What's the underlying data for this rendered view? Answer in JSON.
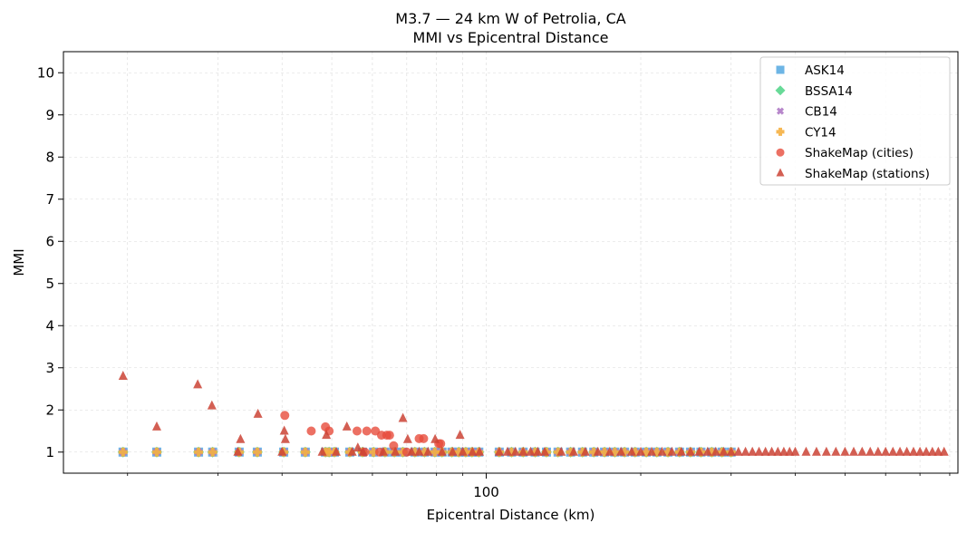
{
  "chart_data": {
    "type": "scatter",
    "title": "M3.7 — 24 km W of Petrolia, CA",
    "subtitle": "MMI vs Epicentral Distance",
    "xlabel": "Epicentral Distance (km)",
    "ylabel": "MMI",
    "x_scale": "log",
    "xlim": [
      15,
      830
    ],
    "ylim": [
      0.5,
      10.5
    ],
    "x_ticks": [
      100
    ],
    "x_tick_labels": [
      "100"
    ],
    "y_ticks": [
      1,
      2,
      3,
      4,
      5,
      6,
      7,
      8,
      9,
      10
    ],
    "y_tick_labels": [
      "1",
      "2",
      "3",
      "4",
      "5",
      "6",
      "7",
      "8",
      "9",
      "10"
    ],
    "grid": true,
    "legend_position": "top-right",
    "gmpe_x": [
      19.6,
      22.8,
      27.5,
      29.3,
      33.0,
      35.8,
      40.3,
      44.4,
      48.6,
      49.4,
      50.6,
      54.2,
      57.4,
      60.3,
      63.5,
      66.2,
      68.8,
      72.6,
      75.8,
      79.4,
      82.0,
      85.7,
      88.4,
      91.2,
      93.8,
      96.7,
      106.0,
      112.0,
      118.0,
      124.5,
      131.0,
      138.0,
      146.0,
      154.0,
      162.0,
      170.0,
      178.0,
      186.0,
      195.0,
      205.0,
      215.0,
      226.0,
      238.0,
      250.0,
      262.0,
      275.0,
      288.0,
      300.0
    ],
    "series": [
      {
        "name": "ASK14",
        "color": "#5DADE2",
        "marker": "square",
        "y_const": 1
      },
      {
        "name": "BSSA14",
        "color": "#58D68D",
        "marker": "diamond",
        "y_const": 1
      },
      {
        "name": "CB14",
        "color": "#AF7AC5",
        "marker": "x",
        "y_const": 1
      },
      {
        "name": "CY14",
        "color": "#F5B041",
        "marker": "plus",
        "y_const": 1
      },
      {
        "name": "ShakeMap (cities)",
        "color": "#E74C3C",
        "marker": "circle",
        "points": [
          [
            40.5,
            1.87
          ],
          [
            45.6,
            1.5
          ],
          [
            48.6,
            1.6
          ],
          [
            49.4,
            1.5
          ],
          [
            56.0,
            1.5
          ],
          [
            58.5,
            1.5
          ],
          [
            60.8,
            1.5
          ],
          [
            62.5,
            1.4
          ],
          [
            64.0,
            1.4
          ],
          [
            64.8,
            1.4
          ],
          [
            66.0,
            1.15
          ],
          [
            74.0,
            1.32
          ],
          [
            75.5,
            1.32
          ],
          [
            80.8,
            1.2
          ],
          [
            81.5,
            1.2
          ],
          [
            58.0,
            1.0
          ],
          [
            62.0,
            1.0
          ],
          [
            70.0,
            1.0
          ]
        ]
      },
      {
        "name": "ShakeMap (stations)",
        "color": "#CB4335",
        "marker": "triangle",
        "points": [
          [
            19.6,
            2.8
          ],
          [
            22.8,
            1.6
          ],
          [
            27.4,
            2.6
          ],
          [
            29.2,
            2.1
          ],
          [
            33.2,
            1.3
          ],
          [
            35.9,
            1.9
          ],
          [
            40.4,
            1.5
          ],
          [
            40.6,
            1.3
          ],
          [
            48.8,
            1.4
          ],
          [
            53.5,
            1.6
          ],
          [
            56.2,
            1.1
          ],
          [
            68.8,
            1.8
          ],
          [
            70.3,
            1.3
          ],
          [
            79.5,
            1.3
          ],
          [
            88.9,
            1.4
          ],
          [
            32.8,
            1.0
          ],
          [
            40.0,
            1.0
          ],
          [
            47.9,
            1.0
          ],
          [
            51.0,
            1.0
          ],
          [
            54.8,
            1.0
          ],
          [
            57.5,
            1.0
          ],
          [
            63.0,
            1.0
          ],
          [
            66.5,
            1.0
          ],
          [
            71.5,
            1.0
          ],
          [
            74.0,
            1.0
          ],
          [
            77.0,
            1.0
          ],
          [
            82.0,
            1.0
          ],
          [
            86.0,
            1.0
          ],
          [
            90.0,
            1.0
          ],
          [
            94.0,
            1.0
          ],
          [
            97.0,
            1.0
          ],
          [
            106.0,
            1.0
          ],
          [
            110.0,
            1.0
          ],
          [
            114.0,
            1.0
          ],
          [
            118.0,
            1.0
          ],
          [
            122.0,
            1.0
          ],
          [
            126.0,
            1.0
          ],
          [
            130.0,
            1.0
          ],
          [
            140.0,
            1.0
          ],
          [
            148.0,
            1.0
          ],
          [
            156.0,
            1.0
          ],
          [
            165.0,
            1.0
          ],
          [
            174.0,
            1.0
          ],
          [
            183.0,
            1.0
          ],
          [
            192.0,
            1.0
          ],
          [
            200.0,
            1.0
          ],
          [
            210.0,
            1.0
          ],
          [
            220.0,
            1.0
          ],
          [
            230.0,
            1.0
          ],
          [
            240.0,
            1.0
          ],
          [
            250.0,
            1.0
          ],
          [
            260.0,
            1.0
          ],
          [
            270.0,
            1.0
          ],
          [
            280.0,
            1.0
          ],
          [
            290.0,
            1.0
          ],
          [
            300.0,
            1.0
          ],
          [
            310.0,
            1.0
          ],
          [
            320.0,
            1.0
          ],
          [
            330.0,
            1.0
          ],
          [
            340.0,
            1.0
          ],
          [
            350.0,
            1.0
          ],
          [
            360.0,
            1.0
          ],
          [
            370.0,
            1.0
          ],
          [
            380.0,
            1.0
          ],
          [
            390.0,
            1.0
          ],
          [
            400.0,
            1.0
          ],
          [
            420.0,
            1.0
          ],
          [
            440.0,
            1.0
          ],
          [
            460.0,
            1.0
          ],
          [
            480.0,
            1.0
          ],
          [
            500.0,
            1.0
          ],
          [
            520.0,
            1.0
          ],
          [
            540.0,
            1.0
          ],
          [
            560.0,
            1.0
          ],
          [
            580.0,
            1.0
          ],
          [
            600.0,
            1.0
          ],
          [
            620.0,
            1.0
          ],
          [
            640.0,
            1.0
          ],
          [
            660.0,
            1.0
          ],
          [
            680.0,
            1.0
          ],
          [
            700.0,
            1.0
          ],
          [
            720.0,
            1.0
          ],
          [
            740.0,
            1.0
          ],
          [
            760.0,
            1.0
          ],
          [
            780.0,
            1.0
          ]
        ]
      }
    ]
  }
}
